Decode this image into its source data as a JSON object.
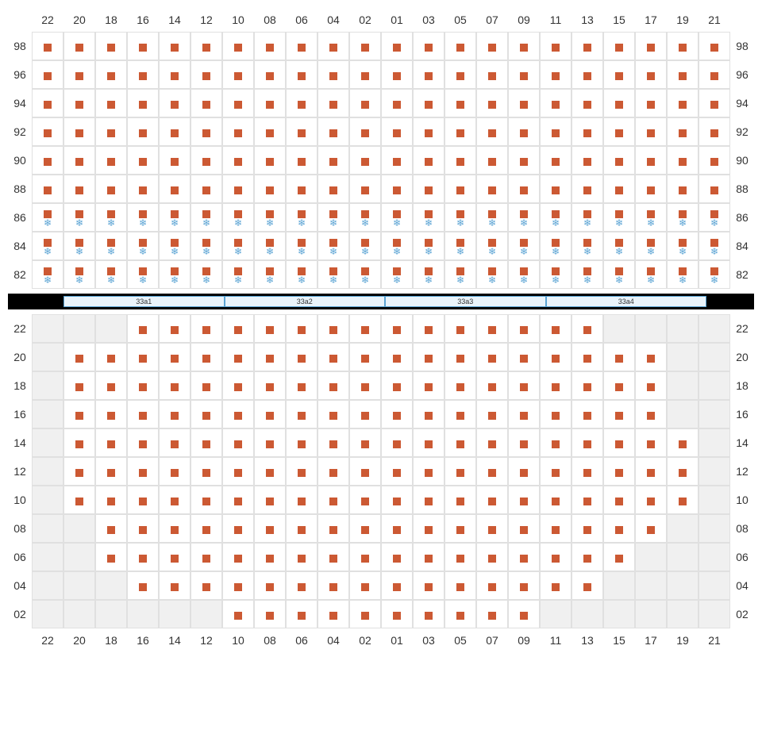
{
  "columns": [
    "22",
    "20",
    "18",
    "16",
    "14",
    "12",
    "10",
    "08",
    "06",
    "04",
    "02",
    "01",
    "03",
    "05",
    "07",
    "09",
    "11",
    "13",
    "15",
    "17",
    "19",
    "21"
  ],
  "upper": {
    "rows": [
      "98",
      "96",
      "94",
      "92",
      "90",
      "88",
      "86",
      "84",
      "82"
    ],
    "snowflakeRows": [
      "86",
      "84",
      "82"
    ],
    "seats": {}
  },
  "tables": [
    "33a1",
    "33a2",
    "33a3",
    "33a4"
  ],
  "lower": {
    "rows": [
      "22",
      "20",
      "18",
      "16",
      "14",
      "12",
      "10",
      "08",
      "06",
      "04",
      "02"
    ],
    "rowDefs": {
      "22": {
        "start": 3,
        "end": 17,
        "empty": [
          0,
          1,
          2,
          18,
          19,
          20,
          21
        ]
      },
      "20": {
        "start": 1,
        "end": 19,
        "empty": [
          0,
          20,
          21
        ]
      },
      "18": {
        "start": 1,
        "end": 19,
        "empty": [
          0,
          20,
          21
        ]
      },
      "16": {
        "start": 1,
        "end": 19,
        "empty": [
          0,
          20,
          21
        ]
      },
      "14": {
        "start": 1,
        "end": 20,
        "empty": [
          0,
          21
        ]
      },
      "12": {
        "start": 1,
        "end": 20,
        "empty": [
          0,
          21
        ]
      },
      "10": {
        "start": 1,
        "end": 20,
        "empty": [
          0,
          21
        ]
      },
      "08": {
        "start": 2,
        "end": 19,
        "empty": [
          0,
          1,
          20,
          21
        ]
      },
      "06": {
        "start": 2,
        "end": 18,
        "empty": [
          0,
          1,
          19,
          20,
          21
        ]
      },
      "04": {
        "start": 3,
        "end": 17,
        "empty": [
          0,
          1,
          2,
          18,
          19,
          20,
          21
        ]
      },
      "02": {
        "start": 6,
        "end": 15,
        "empty": [
          0,
          1,
          2,
          3,
          4,
          5,
          16,
          17,
          18,
          19,
          20,
          21
        ]
      }
    }
  },
  "colors": {
    "seat": "#cc5933",
    "snowflake": "#5ba4d4",
    "grid": "#e0e0e0",
    "empty": "#f0f0f0",
    "tableBg": "#eaf4fb",
    "tableBorder": "#5ba4d4",
    "tableStrip": "#000000"
  }
}
